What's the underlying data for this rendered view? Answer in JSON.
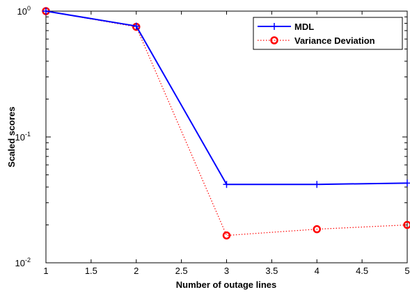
{
  "chart_data": {
    "type": "line",
    "xlabel": "Number of outage lines",
    "ylabel": "Scaled scores",
    "xlim": [
      1,
      5
    ],
    "ylim": [
      0.01,
      1
    ],
    "yscale": "log",
    "grid": false,
    "legend_position": "top-right",
    "x_ticks": [
      "1",
      "1.5",
      "2",
      "2.5",
      "3",
      "3.5",
      "4",
      "4.5",
      "5"
    ],
    "x_tick_values": [
      1,
      1.5,
      2,
      2.5,
      3,
      3.5,
      4,
      4.5,
      5
    ],
    "y_ticks": [
      {
        "value": 1,
        "base": "10",
        "exp": "0"
      },
      {
        "value": 0.1,
        "base": "10",
        "exp": "-1"
      },
      {
        "value": 0.01,
        "base": "10",
        "exp": "-2"
      }
    ],
    "x": [
      1,
      2,
      3,
      4,
      5
    ],
    "series": [
      {
        "name": "MDL",
        "values": [
          1.0,
          0.76,
          0.042,
          0.042,
          0.043
        ],
        "color": "#0000ff",
        "style": "solid",
        "marker": "plus"
      },
      {
        "name": "Variance Deviation",
        "values": [
          1.0,
          0.75,
          0.0165,
          0.0185,
          0.02
        ],
        "color": "#ff0000",
        "style": "dotted",
        "marker": "circle"
      }
    ]
  }
}
